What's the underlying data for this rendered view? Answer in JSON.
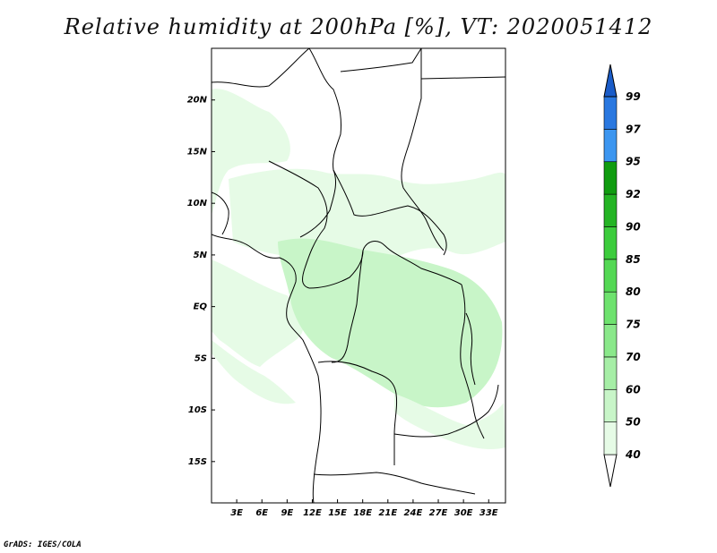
{
  "title": "Relative humidity at 200hPa [%], VT: 2020051412",
  "credit": "GrADS: IGES/COLA",
  "map": {
    "lon_range": [
      0,
      35
    ],
    "lat_range": [
      -19,
      25
    ],
    "lat_ticks": [
      {
        "value": 20,
        "label": "20N"
      },
      {
        "value": 15,
        "label": "15N"
      },
      {
        "value": 10,
        "label": "10N"
      },
      {
        "value": 5,
        "label": "5N"
      },
      {
        "value": 0,
        "label": "EQ"
      },
      {
        "value": -5,
        "label": "5S"
      },
      {
        "value": -10,
        "label": "10S"
      },
      {
        "value": -15,
        "label": "15S"
      }
    ],
    "lon_ticks": [
      {
        "value": 3,
        "label": "3E"
      },
      {
        "value": 6,
        "label": "6E"
      },
      {
        "value": 9,
        "label": "9E"
      },
      {
        "value": 12,
        "label": "12E"
      },
      {
        "value": 15,
        "label": "15E"
      },
      {
        "value": 18,
        "label": "18E"
      },
      {
        "value": 21,
        "label": "21E"
      },
      {
        "value": 24,
        "label": "24E"
      },
      {
        "value": 27,
        "label": "27E"
      },
      {
        "value": 30,
        "label": "30E"
      },
      {
        "value": 33,
        "label": "33E"
      }
    ]
  },
  "colorbar": {
    "levels": [
      "40",
      "50",
      "60",
      "70",
      "75",
      "80",
      "85",
      "90",
      "92",
      "95",
      "97",
      "99"
    ],
    "colors": [
      "#e6fbe6",
      "#c8f5c8",
      "#a6eea6",
      "#8ae88a",
      "#6ee26e",
      "#54d854",
      "#3ccc3c",
      "#24b424",
      "#109c10",
      "#3c96f0",
      "#2a78e0",
      "#1a5cc8"
    ]
  },
  "fill_colors": {
    "light": "#e6fbe6",
    "mid": "#c8f5c8"
  }
}
